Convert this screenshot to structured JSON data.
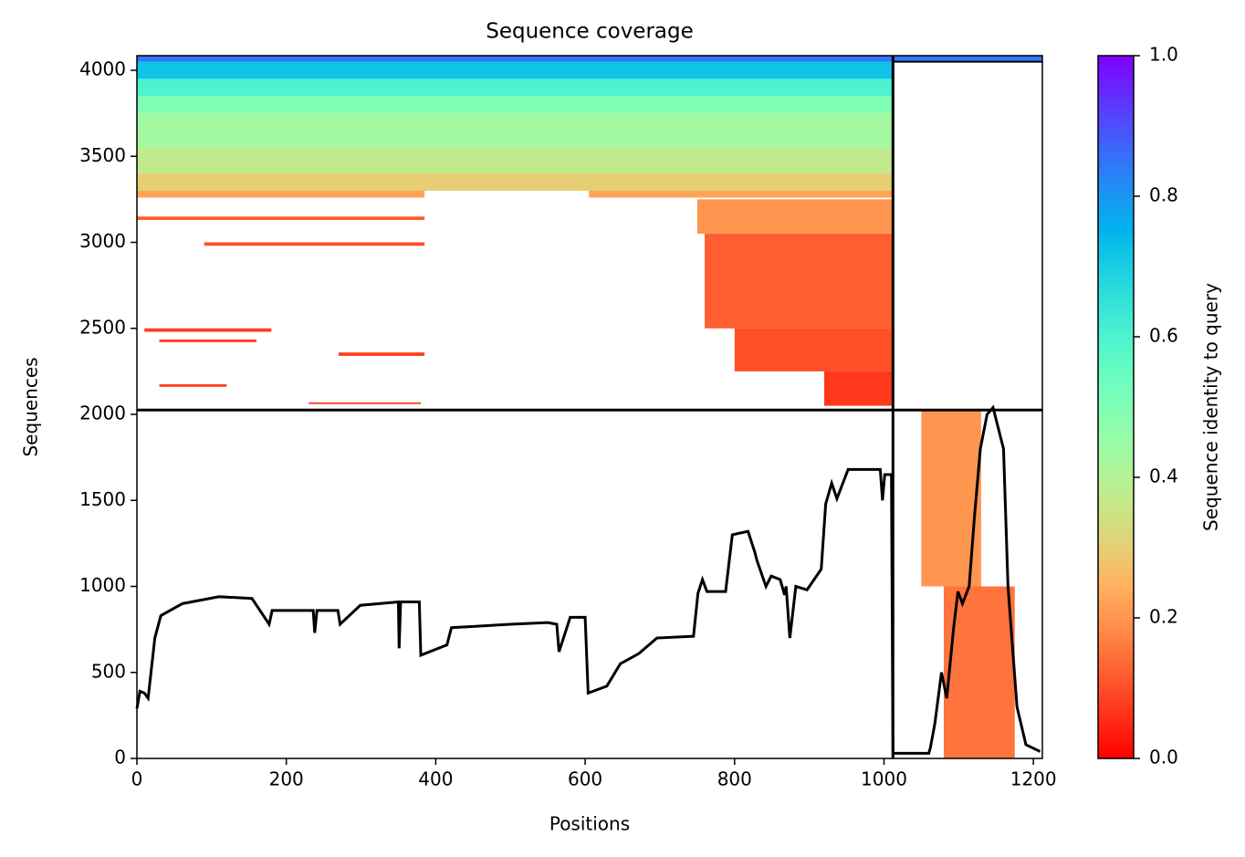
{
  "chart_data": {
    "type": "coverage",
    "title": "Sequence coverage",
    "xlabel": "Positions",
    "ylabel": "Sequences",
    "colorbar_label": "Sequence identity to query",
    "colormap": "rainbow_r",
    "clim": [
      0,
      1
    ],
    "cticks": [
      {
        "value": 0,
        "label": "0.0"
      },
      {
        "value": 0.2,
        "label": "0.2"
      },
      {
        "value": 0.4,
        "label": "0.4"
      },
      {
        "value": 0.6,
        "label": "0.6"
      },
      {
        "value": 0.8,
        "label": "0.8"
      },
      {
        "value": 1,
        "label": "1.0"
      }
    ],
    "xlim": [
      0,
      1212
    ],
    "ylim": [
      0,
      4085
    ],
    "xticks": [
      0,
      200,
      400,
      600,
      800,
      1000,
      1200
    ],
    "yticks": [
      0,
      500,
      1000,
      1500,
      2000,
      2500,
      3000,
      3500,
      4000
    ],
    "dividers": {
      "x": 1012,
      "y": 2025,
      "y_top": 4050
    },
    "blocks": [
      {
        "x0": 0,
        "x1": 1212,
        "y0": 4050,
        "y1": 4085,
        "identity": 0.85
      },
      {
        "x0": 0,
        "x1": 1012,
        "y0": 3950,
        "y1": 4050,
        "identity": 0.72
      },
      {
        "x0": 0,
        "x1": 1012,
        "y0": 3850,
        "y1": 3950,
        "identity": 0.6
      },
      {
        "x0": 0,
        "x1": 1012,
        "y0": 3750,
        "y1": 3850,
        "identity": 0.5
      },
      {
        "x0": 0,
        "x1": 1012,
        "y0": 3550,
        "y1": 3750,
        "identity": 0.43
      },
      {
        "x0": 0,
        "x1": 1012,
        "y0": 3400,
        "y1": 3550,
        "identity": 0.37
      },
      {
        "x0": 0,
        "x1": 1012,
        "y0": 3300,
        "y1": 3400,
        "identity": 0.3
      },
      {
        "x0": 0,
        "x1": 385,
        "y0": 3260,
        "y1": 3300,
        "identity": 0.22
      },
      {
        "x0": 605,
        "x1": 1012,
        "y0": 3260,
        "y1": 3300,
        "identity": 0.22
      },
      {
        "x0": 750,
        "x1": 1012,
        "y0": 3050,
        "y1": 3250,
        "identity": 0.2
      },
      {
        "x0": 760,
        "x1": 1012,
        "y0": 2500,
        "y1": 3050,
        "identity": 0.12
      },
      {
        "x0": 800,
        "x1": 1012,
        "y0": 2250,
        "y1": 2500,
        "identity": 0.1
      },
      {
        "x0": 920,
        "x1": 1012,
        "y0": 2050,
        "y1": 2250,
        "identity": 0.07
      },
      {
        "x0": 0,
        "x1": 385,
        "y0": 3130,
        "y1": 3150,
        "identity": 0.12
      },
      {
        "x0": 90,
        "x1": 385,
        "y0": 2980,
        "y1": 3000,
        "identity": 0.1
      },
      {
        "x0": 10,
        "x1": 180,
        "y0": 2480,
        "y1": 2500,
        "identity": 0.08
      },
      {
        "x0": 30,
        "x1": 160,
        "y0": 2420,
        "y1": 2435,
        "identity": 0.08
      },
      {
        "x0": 270,
        "x1": 385,
        "y0": 2340,
        "y1": 2360,
        "identity": 0.08
      },
      {
        "x0": 30,
        "x1": 120,
        "y0": 2160,
        "y1": 2175,
        "identity": 0.08
      },
      {
        "x0": 230,
        "x1": 380,
        "y0": 2060,
        "y1": 2070,
        "identity": 0.08
      },
      {
        "x0": 1050,
        "x1": 1130,
        "y0": 1000,
        "y1": 2020,
        "identity": 0.2
      },
      {
        "x0": 1080,
        "x1": 1175,
        "y0": 0,
        "y1": 1000,
        "identity": 0.15
      }
    ],
    "coverage": {
      "x": [
        0,
        4,
        10,
        15,
        24,
        32,
        61,
        110,
        154,
        177,
        181,
        236,
        238,
        241,
        269,
        272,
        299,
        350,
        351,
        353,
        378,
        380,
        415,
        421,
        500,
        550,
        562,
        565,
        580,
        600,
        604,
        629,
        647,
        672,
        696,
        745,
        751,
        757,
        763,
        788,
        797,
        818,
        827,
        830,
        842,
        849,
        861,
        867,
        869,
        874,
        882,
        897,
        916,
        922,
        930,
        937,
        952,
        995,
        998,
        1001,
        1010,
        1012,
        1060,
        1062,
        1068,
        1077,
        1084,
        1093,
        1099,
        1105,
        1114,
        1121,
        1129,
        1138,
        1146,
        1160,
        1166,
        1178,
        1190,
        1209
      ],
      "values": [
        290,
        390,
        380,
        350,
        700,
        830,
        900,
        940,
        930,
        780,
        860,
        860,
        730,
        860,
        860,
        780,
        890,
        910,
        640,
        910,
        910,
        600,
        660,
        760,
        780,
        790,
        780,
        620,
        820,
        820,
        380,
        420,
        550,
        610,
        700,
        710,
        960,
        1040,
        970,
        970,
        1300,
        1320,
        1200,
        1150,
        1000,
        1060,
        1040,
        950,
        1000,
        700,
        1000,
        980,
        1100,
        1480,
        1600,
        1510,
        1680,
        1680,
        1500,
        1650,
        1650,
        30,
        30,
        60,
        200,
        500,
        350,
        750,
        970,
        900,
        1000,
        1400,
        1800,
        2000,
        2040,
        1800,
        1000,
        300,
        80,
        40
      ]
    }
  }
}
